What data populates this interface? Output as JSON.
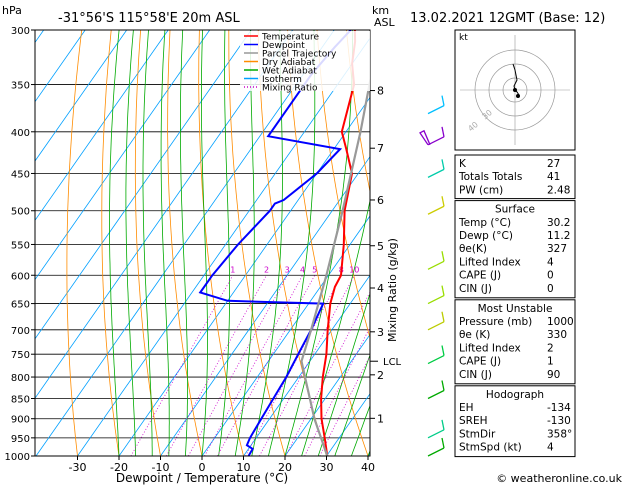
{
  "header": {
    "location": "-31°56'S  115°58'E  20m  ASL",
    "datetime": "13.02.2021  12GMT  (Base: 12)",
    "left_unit": "hPa",
    "right_unit_top": "km",
    "right_unit_bottom": "ASL"
  },
  "chart_data": {
    "type": "skew-t log-p",
    "xlabel": "Dewpoint / Temperature (°C)",
    "ylabel": "hPa",
    "right_axis_label": "Mixing Ratio (g/kg)",
    "x_ticks": [
      -30,
      -20,
      -10,
      0,
      10,
      20,
      30,
      40
    ],
    "x_tick_labels": [
      "-30",
      "-20",
      "-10",
      "0",
      "10",
      "20",
      "30",
      "40"
    ],
    "pressure_levels": [
      300,
      350,
      400,
      450,
      500,
      550,
      600,
      650,
      700,
      750,
      800,
      850,
      900,
      950,
      1000
    ],
    "km_ticks": [
      {
        "label": "8",
        "p": 356
      },
      {
        "label": "7",
        "p": 419
      },
      {
        "label": "6",
        "p": 485
      },
      {
        "label": "5",
        "p": 552
      },
      {
        "label": "4",
        "p": 622
      },
      {
        "label": "3",
        "p": 704
      },
      {
        "label": "2",
        "p": 795
      },
      {
        "label": "1",
        "p": 899
      }
    ],
    "lcl": {
      "label": "LCL",
      "p": 765
    },
    "mixing_ratio_labels": [
      "1",
      "2",
      "3",
      "4",
      "5",
      "8",
      "10",
      "15",
      "20",
      "25"
    ],
    "mixing_ratio_values": [
      1,
      2,
      3,
      4,
      5,
      8,
      10,
      15,
      20,
      25
    ],
    "legend": [
      {
        "label": "Temperature",
        "color": "#ff0000",
        "style": "solid"
      },
      {
        "label": "Dewpoint",
        "color": "#0000ff",
        "style": "solid"
      },
      {
        "label": "Parcel Trajectory",
        "color": "#999999",
        "style": "solid"
      },
      {
        "label": "Dry Adiabat",
        "color": "#ff8c00",
        "style": "solid"
      },
      {
        "label": "Wet Adiabat",
        "color": "#00aa00",
        "style": "solid"
      },
      {
        "label": "Isotherm",
        "color": "#00a0ff",
        "style": "solid"
      },
      {
        "label": "Mixing Ratio",
        "color": "#cc00cc",
        "style": "dotted"
      }
    ],
    "series": [
      {
        "name": "Temperature",
        "color": "#ff0000",
        "points": [
          [
            1000,
            30.2
          ],
          [
            950,
            26.5
          ],
          [
            900,
            22.5
          ],
          [
            850,
            19
          ],
          [
            800,
            15.8
          ],
          [
            750,
            12.8
          ],
          [
            700,
            9
          ],
          [
            650,
            5.2
          ],
          [
            620,
            3.5
          ],
          [
            600,
            3
          ],
          [
            550,
            -1.5
          ],
          [
            500,
            -7
          ],
          [
            450,
            -11.5
          ],
          [
            420,
            -17
          ],
          [
            400,
            -21
          ],
          [
            350,
            -26
          ],
          [
            330,
            -30
          ],
          [
            310,
            -33
          ],
          [
            300,
            -35
          ]
        ]
      },
      {
        "name": "Dewpoint",
        "color": "#0000ff",
        "points": [
          [
            1000,
            11.2
          ],
          [
            980,
            11
          ],
          [
            970,
            9
          ],
          [
            950,
            8.5
          ],
          [
            900,
            8
          ],
          [
            850,
            7.5
          ],
          [
            800,
            7
          ],
          [
            750,
            6
          ],
          [
            700,
            5
          ],
          [
            650,
            3.5
          ],
          [
            645,
            -20
          ],
          [
            630,
            -28
          ],
          [
            600,
            -28
          ],
          [
            550,
            -27
          ],
          [
            500,
            -25
          ],
          [
            490,
            -25
          ],
          [
            485,
            -23.5
          ],
          [
            450,
            -20
          ],
          [
            420,
            -18.5
          ],
          [
            405,
            -38
          ],
          [
            370,
            -38
          ],
          [
            340,
            -38
          ],
          [
            315,
            -37
          ],
          [
            300,
            -36
          ]
        ]
      },
      {
        "name": "Parcel Trajectory",
        "color": "#999999",
        "points": [
          [
            1000,
            30.2
          ],
          [
            900,
            20.8
          ],
          [
            800,
            11.5
          ],
          [
            765,
            8
          ],
          [
            700,
            5
          ],
          [
            600,
            -0.5
          ],
          [
            500,
            -7.5
          ],
          [
            400,
            -16.5
          ],
          [
            300,
            -29
          ]
        ]
      }
    ]
  },
  "hodograph": {
    "label": "kt",
    "ring_labels": [
      "40",
      "30"
    ]
  },
  "indices": {
    "rows": [
      {
        "label": "K",
        "value": "27"
      },
      {
        "label": "Totals Totals",
        "value": "41"
      },
      {
        "label": "PW (cm)",
        "value": "2.48"
      }
    ]
  },
  "surface": {
    "title": "Surface",
    "rows": [
      {
        "label": "Temp (°C)",
        "value": "30.2"
      },
      {
        "label": "Dewp (°C)",
        "value": "11.2"
      },
      {
        "label": "θe(K)",
        "value": "327"
      },
      {
        "label": "Lifted Index",
        "value": "4"
      },
      {
        "label": "CAPE (J)",
        "value": "0"
      },
      {
        "label": "CIN (J)",
        "value": "0"
      }
    ]
  },
  "most_unstable": {
    "title": "Most Unstable",
    "rows": [
      {
        "label": "Pressure (mb)",
        "value": "1000"
      },
      {
        "label": "θe (K)",
        "value": "330"
      },
      {
        "label": "Lifted Index",
        "value": "2"
      },
      {
        "label": "CAPE (J)",
        "value": "1"
      },
      {
        "label": "CIN (J)",
        "value": "90"
      }
    ]
  },
  "hodograph_table": {
    "title": "Hodograph",
    "rows": [
      {
        "label": "EH",
        "value": "-134"
      },
      {
        "label": "SREH",
        "value": "-130"
      },
      {
        "label": "StmDir",
        "value": "358°"
      },
      {
        "label": "StmSpd (kt)",
        "value": "4"
      }
    ]
  },
  "footer": {
    "copyright": "© weatheronline.co.uk"
  },
  "colors": {
    "temperature": "#ff0000",
    "dewpoint": "#0000ff",
    "parcel": "#999999",
    "dry_adiabat": "#ff8c00",
    "wet_adiabat": "#00aa00",
    "isotherm": "#00a0ff",
    "mixing_ratio": "#cc00cc"
  }
}
